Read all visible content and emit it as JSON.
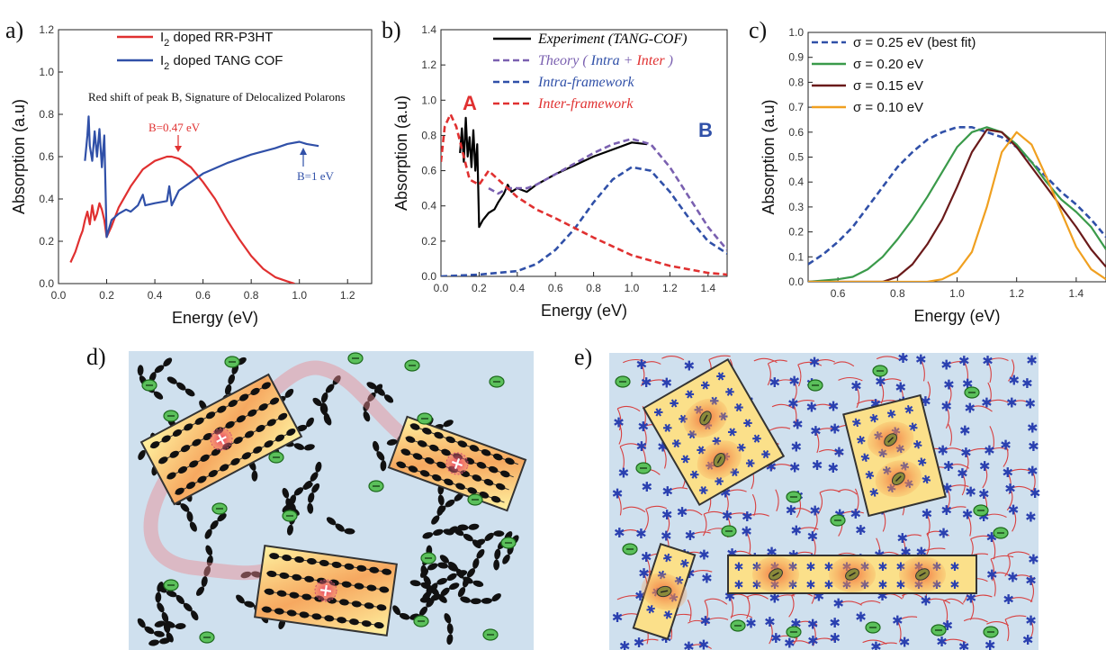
{
  "labels": {
    "a": "a)",
    "b": "b)",
    "c": "c)",
    "d": "d)",
    "e": "e)"
  },
  "colors": {
    "red": "#e03030",
    "blue": "#3050a8",
    "black": "#000000",
    "purple": "#7a60b0",
    "green": "#3a9a4a",
    "darkred": "#6a1a1a",
    "orange": "#f0a020",
    "bg_blue": "#cfe0ee",
    "polaron_orange": "#f4a050"
  },
  "chart_data": [
    {
      "type": "line",
      "panel": "a",
      "xlabel": "Energy (eV)",
      "ylabel": "Absorption (a.u)",
      "xlim": [
        0.0,
        1.3
      ],
      "ylim": [
        0.0,
        1.2
      ],
      "xticks": [
        "0.0",
        "0.2",
        "0.4",
        "0.6",
        "0.8",
        "1.0",
        "1.2"
      ],
      "yticks": [
        "0.0",
        "0.2",
        "0.4",
        "0.6",
        "0.8",
        "1.0",
        "1.2"
      ],
      "legend": {
        "placement": "top-center",
        "entries": [
          {
            "label": "I2 doped RR-P3HT",
            "main": "I",
            "sub": "2",
            "rest": " doped RR-P3HT"
          },
          {
            "label": "I2 doped TANG COF",
            "main": "I",
            "sub": "2",
            "rest": " doped TANG COF"
          }
        ]
      },
      "annotations": {
        "note": "Red shift of peak B, Signature of Delocalized Polarons",
        "peak_p3ht": "B=0.47 eV",
        "peak_cof": "B=1 eV"
      },
      "series": [
        {
          "name": "I2 doped RR-P3HT",
          "color": "#e03030",
          "x": [
            0.05,
            0.07,
            0.09,
            0.1,
            0.11,
            0.12,
            0.13,
            0.14,
            0.15,
            0.16,
            0.17,
            0.18,
            0.19,
            0.2,
            0.22,
            0.25,
            0.3,
            0.35,
            0.4,
            0.45,
            0.47,
            0.5,
            0.55,
            0.6,
            0.65,
            0.7,
            0.75,
            0.8,
            0.85,
            0.9,
            0.95,
            0.98
          ],
          "y": [
            0.1,
            0.15,
            0.22,
            0.25,
            0.3,
            0.34,
            0.28,
            0.37,
            0.3,
            0.33,
            0.38,
            0.35,
            0.3,
            0.22,
            0.27,
            0.36,
            0.46,
            0.54,
            0.58,
            0.6,
            0.6,
            0.59,
            0.55,
            0.48,
            0.4,
            0.3,
            0.21,
            0.13,
            0.07,
            0.03,
            0.01,
            0.0
          ]
        },
        {
          "name": "I2 doped TANG COF",
          "color": "#3050a8",
          "x": [
            0.11,
            0.12,
            0.125,
            0.13,
            0.14,
            0.15,
            0.16,
            0.17,
            0.18,
            0.19,
            0.2,
            0.22,
            0.25,
            0.28,
            0.3,
            0.33,
            0.35,
            0.36,
            0.4,
            0.45,
            0.46,
            0.47,
            0.5,
            0.55,
            0.6,
            0.7,
            0.8,
            0.9,
            0.95,
            1.0,
            1.03,
            1.08
          ],
          "y": [
            0.58,
            0.7,
            0.79,
            0.65,
            0.58,
            0.72,
            0.6,
            0.73,
            0.55,
            0.7,
            0.22,
            0.3,
            0.33,
            0.35,
            0.34,
            0.37,
            0.42,
            0.37,
            0.38,
            0.39,
            0.46,
            0.37,
            0.44,
            0.48,
            0.52,
            0.57,
            0.61,
            0.64,
            0.66,
            0.67,
            0.66,
            0.65
          ]
        }
      ]
    },
    {
      "type": "line",
      "panel": "b",
      "xlabel": "Energy (eV)",
      "ylabel": "Absorption (a.u)",
      "xlim": [
        0.0,
        1.5
      ],
      "ylim": [
        0.0,
        1.4
      ],
      "xticks": [
        "0.0",
        "0.2",
        "0.4",
        "0.6",
        "0.8",
        "1.0",
        "1.2",
        "1.4"
      ],
      "yticks": [
        "0.0",
        "0.2",
        "0.4",
        "0.6",
        "0.8",
        "1.0",
        "1.2",
        "1.4"
      ],
      "legend": {
        "placement": "top-right",
        "entries": [
          {
            "label": "Experiment (TANG-COF)",
            "color": "#000000",
            "dashed": false
          },
          {
            "label": "Theory ( Intra + Inter )",
            "color": "#7a60b0",
            "dashed": true,
            "parts": [
              {
                "t": "Theory ( ",
                "c": "#7a60b0"
              },
              {
                "t": "Intra",
                "c": "#3050a8"
              },
              {
                "t": " + ",
                "c": "#7a60b0"
              },
              {
                "t": "Inter",
                "c": "#e03030"
              },
              {
                "t": " )",
                "c": "#7a60b0"
              }
            ]
          },
          {
            "label": "Intra-framework",
            "color": "#3050a8",
            "dashed": true
          },
          {
            "label": "Inter-framework",
            "color": "#e03030",
            "dashed": true
          }
        ]
      },
      "annotations": {
        "peak_A": "A",
        "peak_B": "B"
      },
      "series": [
        {
          "name": "Experiment (TANG-COF)",
          "color": "#000000",
          "dashed": false,
          "x": [
            0.1,
            0.11,
            0.12,
            0.13,
            0.14,
            0.15,
            0.16,
            0.17,
            0.18,
            0.19,
            0.2,
            0.22,
            0.25,
            0.28,
            0.3,
            0.33,
            0.35,
            0.37,
            0.4,
            0.45,
            0.5,
            0.6,
            0.7,
            0.8,
            0.9,
            1.0,
            1.08
          ],
          "y": [
            0.7,
            0.84,
            0.65,
            0.9,
            0.68,
            0.79,
            0.62,
            0.83,
            0.6,
            0.75,
            0.28,
            0.32,
            0.36,
            0.38,
            0.42,
            0.47,
            0.52,
            0.48,
            0.5,
            0.48,
            0.52,
            0.58,
            0.63,
            0.68,
            0.72,
            0.76,
            0.75
          ]
        },
        {
          "name": "Theory ( Intra + Inter )",
          "color": "#7a60b0",
          "dashed": true,
          "x": [
            0.25,
            0.3,
            0.35,
            0.4,
            0.45,
            0.5,
            0.6,
            0.7,
            0.8,
            0.9,
            1.0,
            1.1,
            1.2,
            1.3,
            1.4,
            1.5
          ],
          "y": [
            0.5,
            0.47,
            0.5,
            0.5,
            0.5,
            0.52,
            0.58,
            0.64,
            0.7,
            0.75,
            0.78,
            0.75,
            0.62,
            0.45,
            0.28,
            0.15
          ]
        },
        {
          "name": "Intra-framework",
          "color": "#3050a8",
          "dashed": true,
          "x": [
            0.0,
            0.2,
            0.4,
            0.5,
            0.6,
            0.7,
            0.8,
            0.9,
            1.0,
            1.1,
            1.2,
            1.3,
            1.4,
            1.5
          ],
          "y": [
            0.0,
            0.01,
            0.03,
            0.07,
            0.15,
            0.27,
            0.42,
            0.55,
            0.62,
            0.6,
            0.48,
            0.33,
            0.2,
            0.13
          ]
        },
        {
          "name": "Inter-framework",
          "color": "#e03030",
          "dashed": true,
          "x": [
            0.0,
            0.02,
            0.05,
            0.08,
            0.12,
            0.15,
            0.2,
            0.25,
            0.3,
            0.4,
            0.5,
            0.6,
            0.8,
            1.0,
            1.2,
            1.4,
            1.5
          ],
          "y": [
            0.65,
            0.85,
            0.92,
            0.85,
            0.68,
            0.55,
            0.52,
            0.6,
            0.55,
            0.45,
            0.38,
            0.33,
            0.22,
            0.12,
            0.06,
            0.02,
            0.01
          ]
        }
      ]
    },
    {
      "type": "line",
      "panel": "c",
      "xlabel": "Energy (eV)",
      "ylabel": "Absorption (a.u)",
      "xlim": [
        0.5,
        1.5
      ],
      "ylim": [
        0.0,
        1.0
      ],
      "xticks": [
        "0.6",
        "0.8",
        "1.0",
        "1.2",
        "1.4"
      ],
      "yticks": [
        "0.0",
        "0.1",
        "0.2",
        "0.3",
        "0.4",
        "0.5",
        "0.6",
        "0.7",
        "0.8",
        "0.9",
        "1.0"
      ],
      "legend": {
        "placement": "top-left",
        "entries": [
          {
            "label": "σ = 0.25 eV (best fit)",
            "color": "#3050a8",
            "dashed": true
          },
          {
            "label": "σ = 0.20 eV",
            "color": "#3a9a4a",
            "dashed": false
          },
          {
            "label": "σ = 0.15 eV",
            "color": "#6a1a1a",
            "dashed": false
          },
          {
            "label": "σ = 0.10 eV",
            "color": "#f0a020",
            "dashed": false
          }
        ]
      },
      "series": [
        {
          "name": "σ = 0.25 eV (best fit)",
          "color": "#3050a8",
          "dashed": true,
          "x": [
            0.5,
            0.55,
            0.6,
            0.65,
            0.7,
            0.75,
            0.8,
            0.85,
            0.9,
            0.95,
            1.0,
            1.05,
            1.1,
            1.15,
            1.2,
            1.25,
            1.3,
            1.35,
            1.4,
            1.45,
            1.5
          ],
          "y": [
            0.07,
            0.11,
            0.16,
            0.22,
            0.3,
            0.38,
            0.46,
            0.52,
            0.57,
            0.6,
            0.62,
            0.62,
            0.6,
            0.58,
            0.54,
            0.48,
            0.42,
            0.36,
            0.31,
            0.25,
            0.18
          ]
        },
        {
          "name": "σ = 0.20 eV",
          "color": "#3a9a4a",
          "dashed": false,
          "x": [
            0.5,
            0.6,
            0.65,
            0.7,
            0.75,
            0.8,
            0.85,
            0.9,
            0.95,
            1.0,
            1.05,
            1.1,
            1.15,
            1.2,
            1.25,
            1.3,
            1.35,
            1.4,
            1.45,
            1.5
          ],
          "y": [
            0.0,
            0.01,
            0.02,
            0.05,
            0.1,
            0.17,
            0.25,
            0.34,
            0.44,
            0.54,
            0.6,
            0.62,
            0.6,
            0.55,
            0.48,
            0.4,
            0.33,
            0.28,
            0.22,
            0.13
          ]
        },
        {
          "name": "σ = 0.15 eV",
          "color": "#6a1a1a",
          "dashed": false,
          "x": [
            0.5,
            0.75,
            0.8,
            0.85,
            0.9,
            0.95,
            1.0,
            1.05,
            1.1,
            1.15,
            1.2,
            1.25,
            1.3,
            1.35,
            1.4,
            1.45,
            1.5
          ],
          "y": [
            0.0,
            0.0,
            0.02,
            0.07,
            0.15,
            0.25,
            0.38,
            0.52,
            0.61,
            0.6,
            0.54,
            0.46,
            0.38,
            0.3,
            0.22,
            0.13,
            0.06
          ]
        },
        {
          "name": "σ = 0.10 eV",
          "color": "#f0a020",
          "dashed": false,
          "x": [
            0.5,
            0.9,
            0.95,
            1.0,
            1.05,
            1.1,
            1.15,
            1.2,
            1.25,
            1.3,
            1.35,
            1.4,
            1.45,
            1.5
          ],
          "y": [
            0.0,
            0.0,
            0.01,
            0.04,
            0.12,
            0.3,
            0.52,
            0.6,
            0.55,
            0.42,
            0.28,
            0.14,
            0.05,
            0.01
          ]
        }
      ]
    }
  ]
}
